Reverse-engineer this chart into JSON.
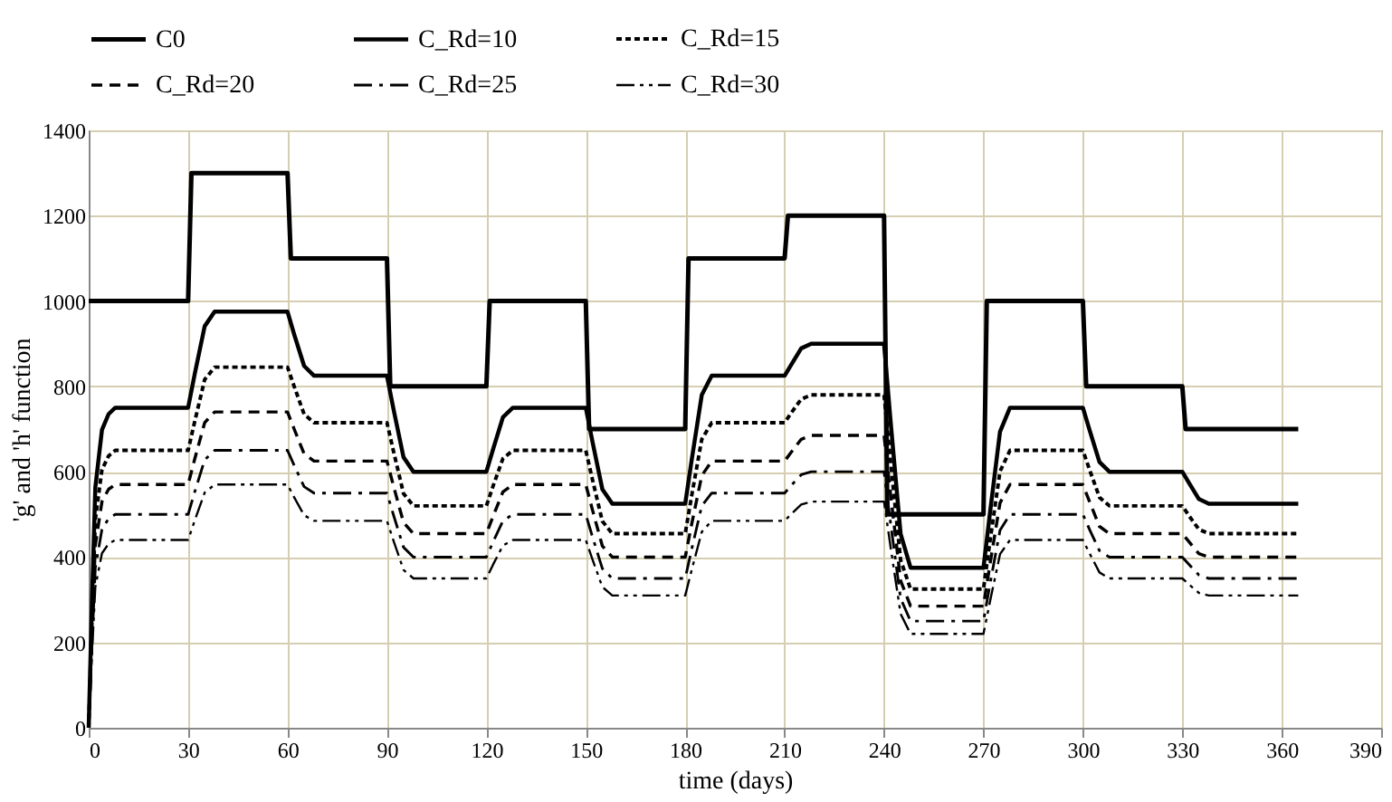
{
  "chart_data": {
    "type": "line",
    "xlabel": "time (days)",
    "ylabel": "'g' and 'h' function",
    "xlim": [
      0,
      390
    ],
    "xticks": [
      0,
      30,
      60,
      90,
      120,
      150,
      180,
      210,
      240,
      270,
      300,
      330,
      360,
      390
    ],
    "ylim": [
      0,
      1400
    ],
    "yticks": [
      0,
      200,
      400,
      600,
      800,
      1000,
      1200,
      1400
    ],
    "grid": true,
    "legend": "top",
    "marker": "none",
    "x": [
      0,
      1,
      2,
      4,
      6,
      8,
      30,
      32,
      35,
      38,
      60,
      62,
      65,
      68,
      90,
      92,
      95,
      98,
      120,
      122,
      125,
      128,
      150,
      152,
      155,
      158,
      180,
      182,
      185,
      188,
      210,
      212,
      215,
      218,
      240,
      242,
      245,
      248,
      270,
      272,
      275,
      278,
      300,
      302,
      305,
      308,
      330,
      332,
      335,
      338,
      365
    ],
    "series": [
      {
        "name": "C0",
        "color": "#000000",
        "line_style": "solid",
        "x": [
          0,
          30,
          31,
          60,
          61,
          90,
          91,
          120,
          121,
          150,
          151,
          180,
          181,
          210,
          211,
          240,
          241,
          270,
          271,
          300,
          301,
          330,
          331,
          365
        ],
        "values": [
          1000,
          1000,
          1300,
          1300,
          1100,
          1100,
          800,
          800,
          1000,
          1000,
          700,
          700,
          1100,
          1100,
          1200,
          1200,
          500,
          500,
          1000,
          1000,
          800,
          800,
          700,
          700
        ]
      },
      {
        "name": "C_Rd=10",
        "color": "#000000",
        "line_style": "solid",
        "values": [
          0,
          300,
          563,
          698,
          735,
          750,
          750,
          829,
          941,
          975,
          975,
          922,
          848,
          825,
          825,
          746,
          634,
          600,
          600,
          652,
          728,
          750,
          750,
          671,
          559,
          525,
          525,
          630,
          780,
          825,
          825,
          851,
          889,
          900,
          900,
          716,
          454,
          375,
          375,
          506,
          694,
          750,
          750,
          698,
          623,
          600,
          600,
          574,
          536,
          525,
          525
        ]
      },
      {
        "name": "C_Rd=15",
        "color": "#000000",
        "line_style": "dotted",
        "values": [
          0,
          260,
          488,
          605,
          637,
          650,
          650,
          718,
          816,
          845,
          845,
          800,
          735,
          715,
          715,
          647,
          549,
          520,
          520,
          566,
          631,
          650,
          650,
          582,
          484,
          455,
          455,
          546,
          676,
          715,
          715,
          738,
          770,
          780,
          780,
          621,
          393,
          325,
          325,
          439,
          601,
          650,
          650,
          605,
          540,
          520,
          520,
          497,
          465,
          455,
          455
        ]
      },
      {
        "name": "C_Rd=20",
        "color": "#000000",
        "line_style": "dashed",
        "values": [
          0,
          228,
          428,
          530,
          559,
          570,
          570,
          630,
          715,
          740,
          740,
          700,
          642,
          625,
          625,
          566,
          481,
          455,
          455,
          495,
          553,
          570,
          570,
          511,
          426,
          400,
          400,
          479,
          591,
          625,
          625,
          646,
          676,
          685,
          685,
          545,
          345,
          285,
          285,
          385,
          527,
          570,
          570,
          530,
          472,
          455,
          455,
          436,
          408,
          400,
          400
        ]
      },
      {
        "name": "C_Rd=25",
        "color": "#000000",
        "line_style": "dashdot",
        "values": [
          0,
          200,
          375,
          465,
          490,
          500,
          500,
          553,
          628,
          650,
          650,
          615,
          565,
          550,
          550,
          498,
          423,
          400,
          400,
          435,
          485,
          500,
          500,
          448,
          373,
          350,
          350,
          420,
          520,
          550,
          550,
          568,
          593,
          600,
          600,
          478,
          303,
          250,
          250,
          338,
          463,
          500,
          500,
          465,
          415,
          400,
          400,
          383,
          358,
          350,
          350
        ]
      },
      {
        "name": "C_Rd=30",
        "color": "#000000",
        "line_style": "dashdotdot",
        "values": [
          0,
          176,
          330,
          409,
          431,
          440,
          440,
          486,
          551,
          570,
          570,
          540,
          498,
          485,
          485,
          438,
          370,
          350,
          350,
          382,
          427,
          440,
          440,
          395,
          330,
          310,
          310,
          371,
          459,
          485,
          485,
          501,
          523,
          530,
          530,
          422,
          267,
          220,
          220,
          297,
          407,
          440,
          440,
          409,
          364,
          350,
          350,
          336,
          316,
          310,
          310
        ]
      }
    ]
  }
}
